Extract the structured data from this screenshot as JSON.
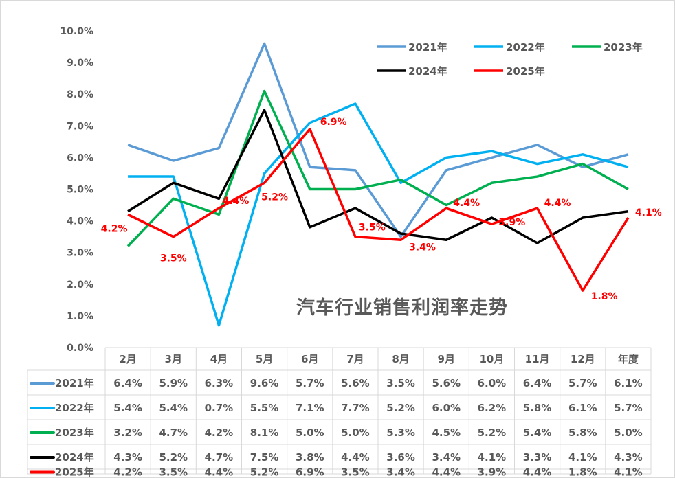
{
  "chart_data": {
    "type": "line",
    "title": "汽车行业销售利润率走势",
    "categories": [
      "2月",
      "3月",
      "4月",
      "5月",
      "6月",
      "7月",
      "8月",
      "9月",
      "10月",
      "11月",
      "12月",
      "年度"
    ],
    "ylim": [
      0,
      10
    ],
    "yticks": [
      "0.0%",
      "1.0%",
      "2.0%",
      "3.0%",
      "4.0%",
      "5.0%",
      "6.0%",
      "7.0%",
      "8.0%",
      "9.0%",
      "10.0%"
    ],
    "grid": false,
    "legend_position": "top-right",
    "data_labels_series": "2025年",
    "series": [
      {
        "name": "2021年",
        "color": "#5b9bd5",
        "values": [
          6.4,
          5.9,
          6.3,
          9.6,
          5.7,
          5.6,
          3.5,
          5.6,
          6.0,
          6.4,
          5.7,
          6.1
        ],
        "table": [
          "6.4%",
          "5.9%",
          "6.3%",
          "9.6%",
          "5.7%",
          "5.6%",
          "3.5%",
          "5.6%",
          "6.0%",
          "6.4%",
          "5.7%",
          "6.1%"
        ]
      },
      {
        "name": "2022年",
        "color": "#00b0f0",
        "values": [
          5.4,
          5.4,
          0.7,
          5.5,
          7.1,
          7.7,
          5.2,
          6.0,
          6.2,
          5.8,
          6.1,
          5.7
        ],
        "table": [
          "5.4%",
          "5.4%",
          "0.7%",
          "5.5%",
          "7.1%",
          "7.7%",
          "5.2%",
          "6.0%",
          "6.2%",
          "5.8%",
          "6.1%",
          "5.7%"
        ]
      },
      {
        "name": "2023年",
        "color": "#00b050",
        "values": [
          3.2,
          4.7,
          4.2,
          8.1,
          5.0,
          5.0,
          5.3,
          4.5,
          5.2,
          5.4,
          5.8,
          5.0
        ],
        "table": [
          "3.2%",
          "4.7%",
          "4.2%",
          "8.1%",
          "5.0%",
          "5.0%",
          "5.3%",
          "4.5%",
          "5.2%",
          "5.4%",
          "5.8%",
          "5.0%"
        ]
      },
      {
        "name": "2024年",
        "color": "#000000",
        "values": [
          4.3,
          5.2,
          4.7,
          7.5,
          3.8,
          4.4,
          3.6,
          3.4,
          4.1,
          3.3,
          4.1,
          4.3
        ],
        "table": [
          "4.3%",
          "5.2%",
          "4.7%",
          "7.5%",
          "3.8%",
          "4.4%",
          "3.6%",
          "3.4%",
          "4.1%",
          "3.3%",
          "4.1%",
          "4.3%"
        ]
      },
      {
        "name": "2025年",
        "color": "#ff0000",
        "values": [
          4.2,
          3.5,
          4.4,
          5.2,
          6.9,
          3.5,
          3.4,
          4.4,
          3.9,
          4.4,
          1.8,
          4.1
        ],
        "table": [
          "4.2%",
          "3.5%",
          "4.4%",
          "5.2%",
          "6.9%",
          "3.5%",
          "3.4%",
          "4.4%",
          "3.9%",
          "4.4%",
          "1.8%",
          "4.1%"
        ]
      }
    ]
  }
}
